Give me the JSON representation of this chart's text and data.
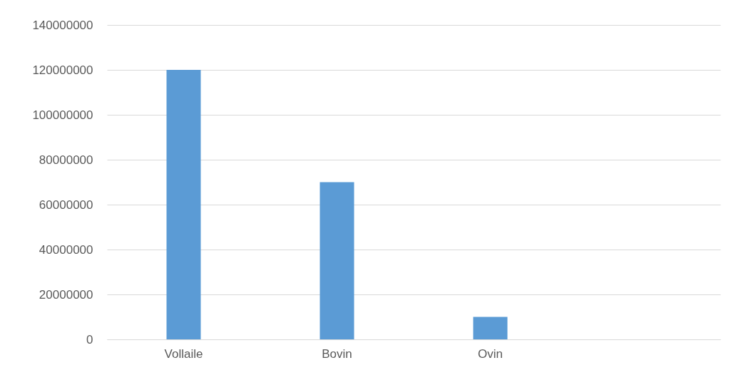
{
  "chart_data": {
    "type": "bar",
    "categories": [
      "Vollaile",
      "Bovin",
      "Ovin",
      null
    ],
    "values": [
      120000000,
      70000000,
      10000000,
      null
    ],
    "color": "#5b9bd5",
    "ylim": [
      0,
      140000000
    ],
    "yticks": [
      0,
      20000000,
      40000000,
      60000000,
      80000000,
      100000000,
      120000000,
      140000000
    ],
    "grid": "y"
  }
}
